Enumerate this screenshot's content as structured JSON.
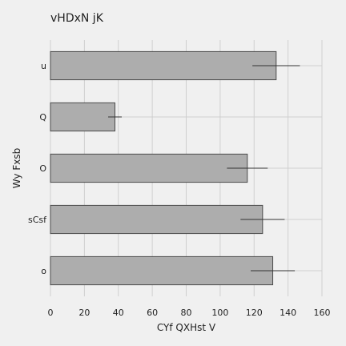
{
  "chart_data": {
    "type": "bar",
    "orientation": "horizontal",
    "title": "vHDxN jK",
    "xlabel": "CYf QXHst V",
    "ylabel": "Wy Fxsb",
    "categories": [
      "u",
      "Q",
      "O",
      "sCsf",
      "o"
    ],
    "values": [
      133,
      38,
      116,
      125,
      131
    ],
    "errors": [
      14,
      4,
      12,
      13,
      13
    ],
    "xlim": [
      0,
      160
    ],
    "xticks": [
      0,
      20,
      40,
      60,
      80,
      100,
      120,
      140,
      160
    ],
    "grid": true,
    "colors": {
      "background": "#f0f0f0",
      "bar_fill": "#adadad",
      "bar_edge": "#4a4a4a",
      "grid": "#cfcfcf",
      "error": "#333333",
      "text": "#222222"
    }
  }
}
